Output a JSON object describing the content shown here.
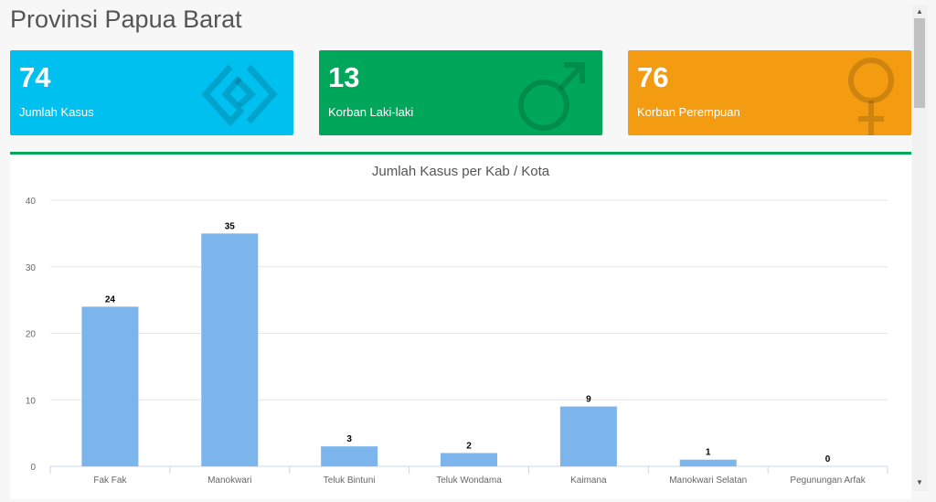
{
  "page_title": "Provinsi Papua Barat",
  "cards": [
    {
      "value": "74",
      "label": "Jumlah Kasus",
      "color": "#00c0ef",
      "icon": "handshake-icon"
    },
    {
      "value": "13",
      "label": "Korban Laki-laki",
      "color": "#00a65a",
      "icon": "male-icon"
    },
    {
      "value": "76",
      "label": "Korban Perempuan",
      "color": "#f39c12",
      "icon": "female-icon"
    }
  ],
  "chart_data": {
    "type": "bar",
    "title": "Jumlah Kasus per Kab / Kota",
    "categories": [
      "Fak Fak",
      "Manokwari",
      "Teluk Bintuni",
      "Teluk Wondama",
      "Kaimana",
      "Manokwari Selatan",
      "Pegunungan Arfak"
    ],
    "values": [
      24,
      35,
      3,
      2,
      9,
      1,
      0
    ],
    "ylim": [
      0,
      40
    ],
    "yticks": [
      0,
      10,
      20,
      30,
      40
    ],
    "grid": true,
    "bar_color": "#7cb5ec",
    "data_labels": true
  }
}
